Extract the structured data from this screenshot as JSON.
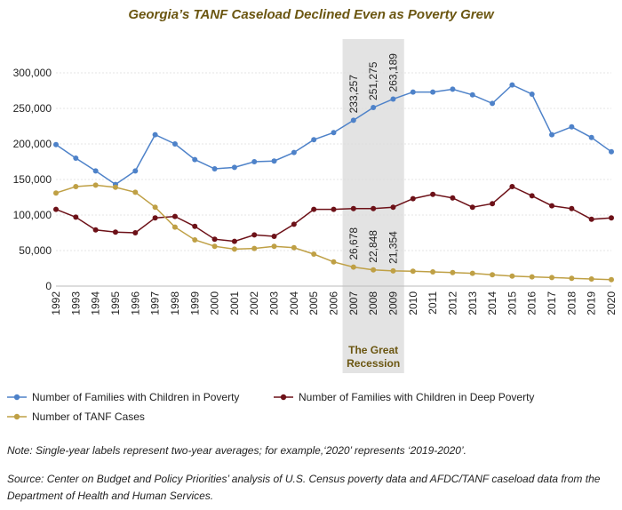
{
  "title": "Georgia’s TANF Caseload Declined Even as Poverty Grew",
  "recession_label_line1": "The Great",
  "recession_label_line2": "Recession",
  "note": "Note: Single-year labels represent two-year averages; for example,‘2020’ represents ‘2019-2020’.",
  "source": "Source: Center on Budget and Policy Priorities’ analysis of U.S. Census poverty data and AFDC/TANF caseload data from the Department of Health and Human Services.",
  "colors": {
    "poverty": "#4e82c9",
    "deep": "#6d1118",
    "tanf": "#bfa045",
    "shade": "#e3e3e3",
    "grid": "#dddddd"
  },
  "chart_data": {
    "type": "line",
    "x": [
      "1992",
      "1993",
      "1994",
      "1995",
      "1996",
      "1997",
      "1998",
      "1999",
      "2000",
      "2001",
      "2002",
      "2003",
      "2004",
      "2005",
      "2006",
      "2007",
      "2008",
      "2009",
      "2010",
      "2011",
      "2012",
      "2013",
      "2014",
      "2015",
      "2016",
      "2017",
      "2018",
      "2019",
      "2020"
    ],
    "ylim": [
      0,
      300000
    ],
    "yticks": [
      "0",
      "50,000",
      "100,000",
      "150,000",
      "200,000",
      "250,000",
      "300,000"
    ],
    "yticks_values": [
      0,
      50000,
      100000,
      150000,
      200000,
      250000,
      300000
    ],
    "shaded_range": [
      "2007",
      "2009"
    ],
    "series": [
      {
        "name": "Number of Families with Children in Poverty",
        "color": "#4e82c9",
        "values": [
          199000,
          180000,
          162000,
          143000,
          162000,
          213000,
          200000,
          178000,
          165000,
          167000,
          175000,
          176000,
          188000,
          206000,
          216000,
          233257,
          251275,
          263189,
          273000,
          273000,
          277000,
          269000,
          257000,
          283000,
          270000,
          213000,
          224000,
          209000,
          189000
        ]
      },
      {
        "name": "Number of Families with Children in Deep Poverty",
        "color": "#6d1118",
        "values": [
          108000,
          97000,
          79000,
          76000,
          75000,
          96000,
          98000,
          84000,
          66000,
          63000,
          72000,
          70000,
          87000,
          108000,
          108000,
          109000,
          109000,
          111000,
          123000,
          129000,
          124000,
          111000,
          116000,
          140000,
          127000,
          113000,
          109000,
          94000,
          96000
        ]
      },
      {
        "name": "Number of TANF Cases",
        "color": "#bfa045",
        "values": [
          131000,
          140000,
          142000,
          139000,
          132000,
          111000,
          83000,
          65000,
          56000,
          52000,
          53000,
          56000,
          54000,
          45000,
          34000,
          26678,
          22848,
          21354,
          21000,
          20000,
          19000,
          18000,
          16000,
          14000,
          13000,
          12000,
          11000,
          10000,
          9000
        ]
      }
    ],
    "annotations": [
      {
        "series": 0,
        "x": "2007",
        "text": "233,257"
      },
      {
        "series": 0,
        "x": "2008",
        "text": "251,275"
      },
      {
        "series": 0,
        "x": "2009",
        "text": "263,189"
      },
      {
        "series": 2,
        "x": "2007",
        "text": "26,678"
      },
      {
        "series": 2,
        "x": "2008",
        "text": "22,848"
      },
      {
        "series": 2,
        "x": "2009",
        "text": "21,354"
      }
    ]
  }
}
